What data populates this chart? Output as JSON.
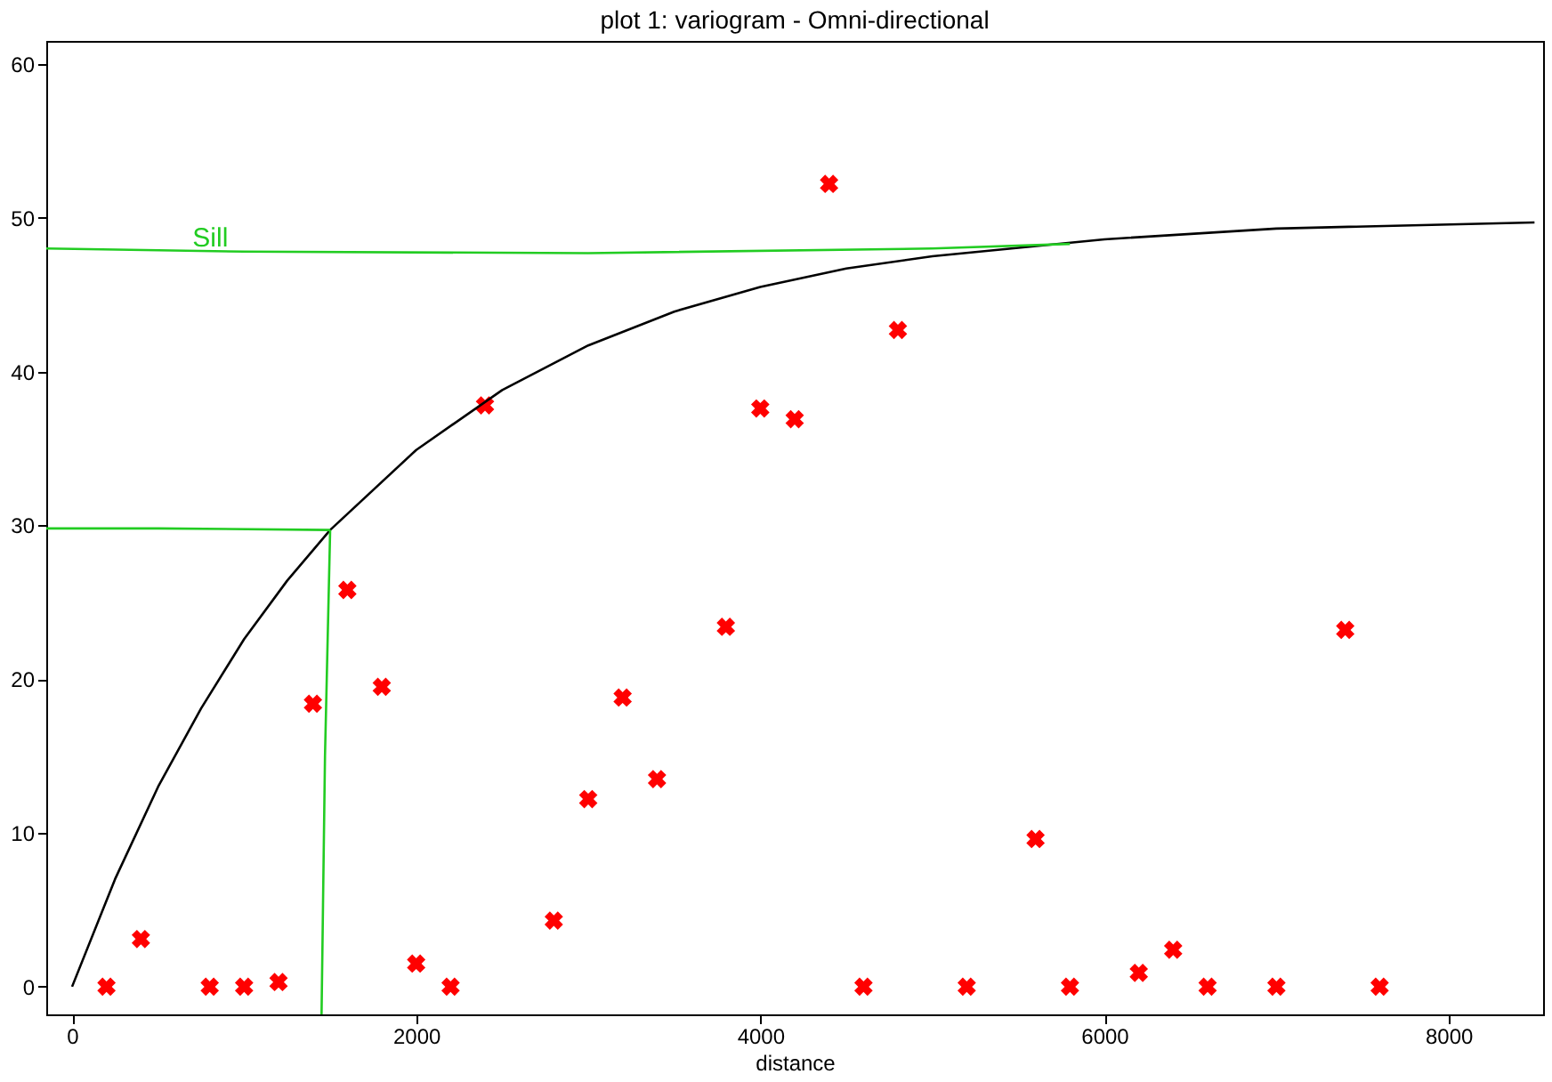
{
  "chart_data": {
    "type": "scatter",
    "title": "plot 1:  variogram - Omni-directional",
    "xlabel": "distance",
    "xlim": [
      -150,
      8550
    ],
    "ylim": [
      -1.8,
      61.5
    ],
    "xticks": [
      0,
      2000,
      4000,
      6000,
      8000
    ],
    "yticks": [
      0,
      10,
      20,
      30,
      40,
      50,
      60
    ],
    "grid": false,
    "annotations": [
      {
        "text": "Sill",
        "x": 700,
        "y": 47.8
      }
    ],
    "series": [
      {
        "marker": "cross",
        "color": "#ff0000",
        "x": [
          200,
          400,
          800,
          1000,
          1200,
          1400,
          1600,
          1800,
          2000,
          2200,
          2400,
          2800,
          3000,
          3200,
          3400,
          3800,
          4000,
          4200,
          4400,
          4600,
          4800,
          5200,
          5600,
          5800,
          6200,
          6400,
          6600,
          7000,
          7400,
          7600
        ],
        "values": [
          0,
          3.1,
          0,
          0,
          0.3,
          18.4,
          25.8,
          19.5,
          1.5,
          0,
          37.8,
          4.3,
          12.2,
          18.8,
          13.5,
          23.4,
          37.6,
          36.9,
          52.2,
          0,
          42.7,
          0,
          9.6,
          0,
          0.9,
          2.4,
          0,
          0,
          23.2,
          0
        ]
      },
      {
        "type": "line",
        "marker": "none",
        "color": "#000000",
        "x": [
          0,
          250,
          500,
          750,
          1000,
          1250,
          1500,
          2000,
          2500,
          3000,
          3500,
          4000,
          4500,
          5000,
          6000,
          7000,
          8500
        ],
        "values": [
          0,
          7.0,
          13.0,
          18.1,
          22.6,
          26.4,
          29.7,
          34.9,
          38.8,
          41.7,
          43.9,
          45.5,
          46.7,
          47.5,
          48.6,
          49.3,
          49.7
        ]
      },
      {
        "type": "line",
        "marker": "none",
        "color": "#22cc22",
        "x": [
          -150,
          1000,
          3000,
          5000,
          5800
        ],
        "values": [
          48,
          47.8,
          47.7,
          48,
          48.3
        ]
      },
      {
        "type": "line",
        "marker": "none",
        "color": "#22cc22",
        "x": [
          -150,
          500,
          1500
        ],
        "values": [
          29.8,
          29.8,
          29.7
        ]
      },
      {
        "type": "line",
        "marker": "none",
        "color": "#22cc22",
        "x": [
          1450,
          1470,
          1500
        ],
        "values": [
          -1.8,
          15,
          29.7
        ]
      }
    ]
  }
}
